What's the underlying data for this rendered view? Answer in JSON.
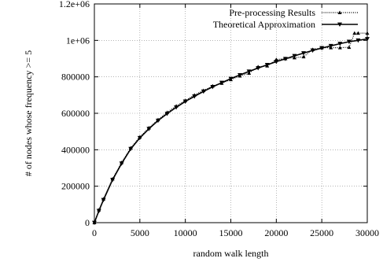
{
  "chart_data": {
    "type": "line",
    "xlabel": "random walk length",
    "ylabel": "# of nodes whose frequency >= 5",
    "xlim": [
      0,
      30000
    ],
    "ylim": [
      0,
      1200000
    ],
    "x_ticks": [
      0,
      5000,
      10000,
      15000,
      20000,
      25000,
      30000
    ],
    "x_tick_labels": [
      "0",
      "5000",
      "10000",
      "15000",
      "20000",
      "25000",
      "30000"
    ],
    "y_ticks": [
      0,
      200000,
      400000,
      600000,
      800000,
      1000000,
      1200000
    ],
    "y_tick_labels": [
      "0",
      "200000",
      "400000",
      "600000",
      "800000",
      "1e+06",
      "1.2e+06"
    ],
    "grid": true,
    "legend_position": "top-right",
    "series": [
      {
        "name": "Pre-processing Results",
        "marker": "triangle-up",
        "line_style": "dotted",
        "x": [
          0,
          500,
          1000,
          2000,
          3000,
          4000,
          5000,
          6000,
          7000,
          8000,
          9000,
          10000,
          11000,
          12000,
          13000,
          14000,
          15000,
          16000,
          17000,
          18000,
          19000,
          20000,
          21000,
          22000,
          23000,
          24000,
          25000,
          26000,
          27000,
          28000,
          28600,
          29000,
          30000
        ],
        "y": [
          0,
          70000,
          130000,
          240000,
          330000,
          410000,
          470000,
          520000,
          565000,
          605000,
          640000,
          670000,
          700000,
          725000,
          750000,
          765000,
          785000,
          805000,
          820000,
          855000,
          860000,
          895000,
          900000,
          905000,
          910000,
          950000,
          960000,
          960000,
          960000,
          962000,
          1040000,
          1040000,
          1040000
        ]
      },
      {
        "name": "Theoretical Approximation",
        "marker": "triangle-down",
        "line_style": "solid",
        "x": [
          0,
          500,
          1000,
          2000,
          3000,
          4000,
          5000,
          6000,
          7000,
          8000,
          9000,
          10000,
          11000,
          12000,
          13000,
          14000,
          15000,
          16000,
          17000,
          18000,
          19000,
          20000,
          21000,
          22000,
          23000,
          24000,
          25000,
          26000,
          27000,
          28000,
          29000,
          30000
        ],
        "y": [
          0,
          65000,
          125000,
          235000,
          325000,
          405000,
          465000,
          515000,
          560000,
          598000,
          633000,
          665000,
          693000,
          720000,
          745000,
          768000,
          790000,
          810000,
          830000,
          848000,
          866000,
          883000,
          899000,
          915000,
          930000,
          945000,
          958000,
          970000,
          982000,
          993000,
          1000000,
          1008000
        ]
      }
    ]
  }
}
